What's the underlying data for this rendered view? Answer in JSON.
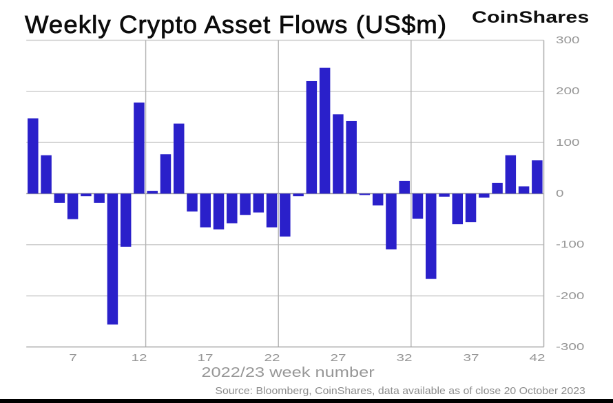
{
  "header": {
    "title": "Weekly Crypto Asset Flows (US$m)",
    "logo": "CoinShares"
  },
  "chart_data": {
    "type": "bar",
    "title": "Weekly Crypto Asset Flows (US$m)",
    "xlabel": "2022/23 week number",
    "ylabel": "",
    "x": [
      4,
      5,
      6,
      7,
      8,
      9,
      10,
      11,
      12,
      13,
      14,
      15,
      16,
      17,
      18,
      19,
      20,
      21,
      22,
      23,
      24,
      25,
      26,
      27,
      28,
      29,
      30,
      31,
      32,
      33,
      34,
      35,
      36,
      37,
      38,
      39,
      40,
      41,
      42
    ],
    "values": [
      147,
      75,
      -18,
      -50,
      -5,
      -18,
      -256,
      -104,
      178,
      5,
      77,
      137,
      -35,
      -66,
      -70,
      -58,
      -42,
      -37,
      -66,
      -84,
      -5,
      220,
      246,
      155,
      142,
      -3,
      -23,
      -109,
      25,
      -49,
      -167,
      -6,
      -60,
      -56,
      -8,
      21,
      75,
      14,
      65
    ],
    "x_ticks": [
      7,
      12,
      17,
      22,
      27,
      32,
      37,
      42
    ],
    "y_ticks": [
      300,
      200,
      100,
      0,
      -100,
      -200,
      -300
    ],
    "ylim": [
      -300,
      300
    ],
    "x_gridlines_at_weeks": [
      12.5,
      22.5,
      32.5,
      42.5
    ],
    "grid": true,
    "legend": "none",
    "bar_color": "#2a20ca",
    "grid_color": "#cacaca",
    "zero_line_color": "#a0a0a0",
    "axis_line_color": "#a6a6a6",
    "vertical_grid_color": "#b3b3b3",
    "tick_label_color": "#969696"
  },
  "footer": {
    "source": "Source: Bloomberg, CoinShares, data available as of close 20 October 2023"
  }
}
